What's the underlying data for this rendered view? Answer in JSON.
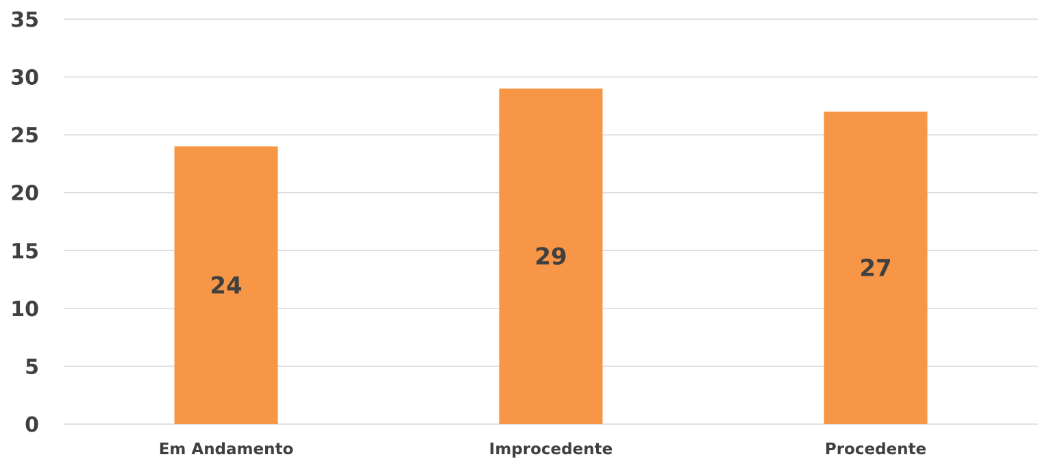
{
  "chart_data": {
    "type": "bar",
    "categories": [
      "Em Andamento",
      "Improcedente",
      "Procedente"
    ],
    "values": [
      24,
      29,
      27
    ],
    "data_labels": [
      "24",
      "29",
      "27"
    ],
    "title": "",
    "xlabel": "",
    "ylabel": "",
    "ylim": [
      0,
      35
    ],
    "yticks": [
      0,
      5,
      10,
      15,
      20,
      25,
      30,
      35
    ],
    "ytick_labels": [
      "0",
      "5",
      "10",
      "15",
      "20",
      "25",
      "30",
      "35"
    ],
    "grid": true,
    "legend": "none",
    "colors": {
      "bar": "#f79646",
      "grid": "#d9d9d9",
      "text": "#404040"
    }
  }
}
